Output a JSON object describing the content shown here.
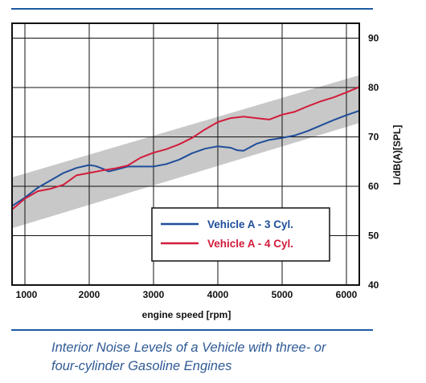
{
  "chart_data": {
    "type": "line",
    "title": "",
    "xlabel": "engine speed [rpm]",
    "ylabel": "L/dB(A)[SPL]",
    "xlim": [
      800,
      6200
    ],
    "ylim": [
      40,
      93
    ],
    "grid": true,
    "x_ticks": [
      1000,
      2000,
      3000,
      4000,
      5000,
      6000
    ],
    "y_ticks": [
      40,
      50,
      60,
      70,
      80,
      90
    ],
    "legend_position": "bottom-right",
    "band": {
      "x": [
        800,
        6200
      ],
      "lower": [
        51.5,
        72.8
      ],
      "upper": [
        61.8,
        82.5
      ],
      "color": "#c8c8c8"
    },
    "series": [
      {
        "name": "Vehicle A - 3 Cyl.",
        "color": "#1f4e9a",
        "x": [
          800,
          1000,
          1200,
          1400,
          1600,
          1800,
          2000,
          2100,
          2200,
          2300,
          2400,
          2600,
          2800,
          3000,
          3200,
          3400,
          3600,
          3800,
          4000,
          4200,
          4300,
          4400,
          4600,
          4800,
          5000,
          5200,
          5400,
          5600,
          5800,
          6000,
          6200
        ],
        "values": [
          56.0,
          57.7,
          59.7,
          61.2,
          62.7,
          63.7,
          64.3,
          64.1,
          63.6,
          63.0,
          63.3,
          64.0,
          64.0,
          64.0,
          64.5,
          65.4,
          66.7,
          67.6,
          68.1,
          67.8,
          67.3,
          67.2,
          68.6,
          69.4,
          69.8,
          70.3,
          71.2,
          72.3,
          73.4,
          74.4,
          75.3
        ]
      },
      {
        "name": "Vehicle A - 4 Cyl.",
        "color": "#d21c3a",
        "x": [
          800,
          1000,
          1200,
          1400,
          1600,
          1800,
          2000,
          2200,
          2400,
          2600,
          2800,
          3000,
          3200,
          3400,
          3600,
          3800,
          4000,
          4200,
          4400,
          4600,
          4800,
          5000,
          5200,
          5400,
          5600,
          5800,
          6000,
          6200
        ],
        "values": [
          55.3,
          57.5,
          59.0,
          59.5,
          60.3,
          62.2,
          62.7,
          63.2,
          63.6,
          64.2,
          65.8,
          66.8,
          67.5,
          68.5,
          69.8,
          71.5,
          73.0,
          73.8,
          74.1,
          73.8,
          73.5,
          74.5,
          75.1,
          76.2,
          77.2,
          78.0,
          79.0,
          80.1
        ]
      }
    ]
  },
  "caption": {
    "line1": "Interior Noise Levels of a Vehicle with three- or",
    "line2": "four-cylinder Gasoline Engines"
  }
}
